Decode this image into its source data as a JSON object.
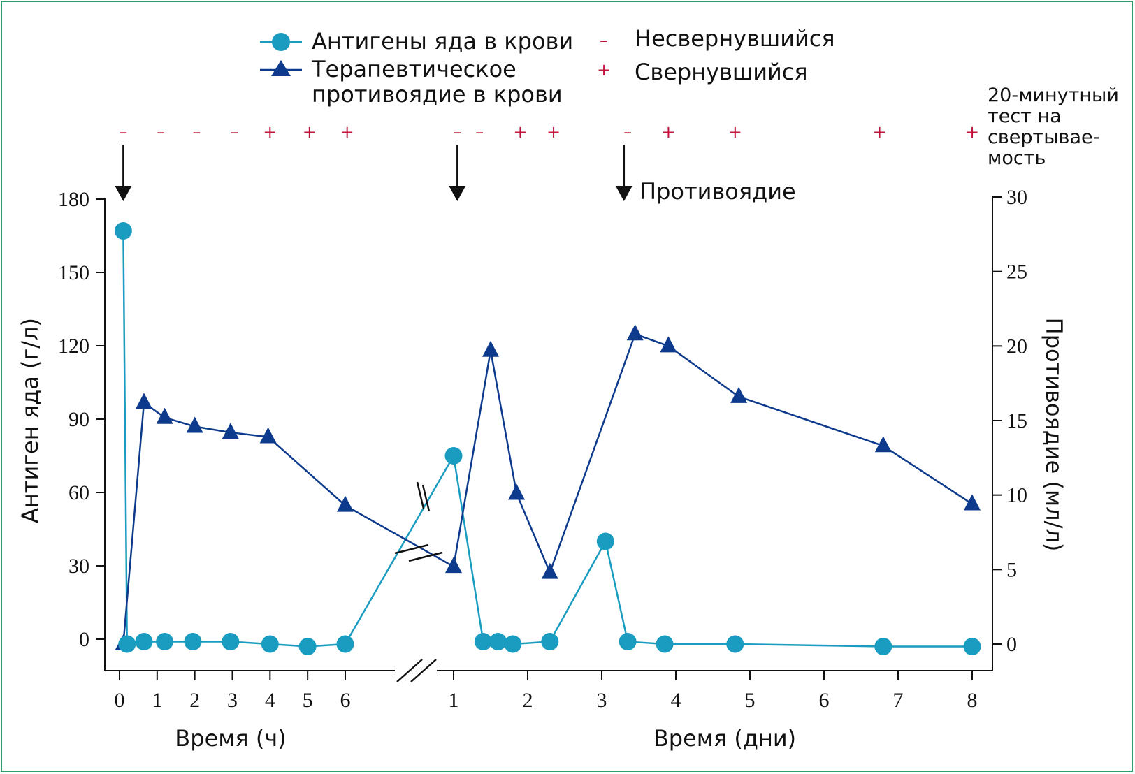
{
  "colors": {
    "antigen": "#1a9cc0",
    "antidote": "#0d3a8c",
    "clot_mark": "#c0143c",
    "frame": "#2e9e6e"
  },
  "chart_data": {
    "type": "line",
    "legend": {
      "antigen": "Антигены яда в крови",
      "antidote_line1": "Терапевтическое",
      "antidote_line2": "противоядие в крови",
      "minus_label": "Несвернувшийся",
      "plus_label": "Свернувшийся",
      "minus_symbol": "–",
      "plus_symbol": "+"
    },
    "clot_test_label": [
      "20-минутный",
      "тест на",
      "свертывае-",
      "мость"
    ],
    "antidote_annotation": "Противоядие",
    "ylabel_left": "Антиген яда (г/л)",
    "ylabel_right": "Противоядие (мл/л)",
    "ylim_left": [
      0,
      180
    ],
    "ylim_right": [
      0,
      30
    ],
    "yticks_left": [
      "180",
      "150",
      "120",
      "90",
      "60",
      "30",
      "0"
    ],
    "yticks_right": [
      "30",
      "25",
      "20",
      "15",
      "10",
      "5",
      "0"
    ],
    "xlabel_hours": "Время (ч)",
    "xlabel_days": "Время (дни)",
    "xticks_hours": [
      "0",
      "1",
      "2",
      "3",
      "4",
      "5",
      "6"
    ],
    "xticks_days": [
      "1",
      "2",
      "3",
      "4",
      "5",
      "6",
      "7",
      "8"
    ],
    "series": [
      {
        "name": "Антигены яда в крови",
        "axis": "left",
        "points": [
          {
            "seg": "h",
            "x": 0.1,
            "y": 167
          },
          {
            "seg": "h",
            "x": 0.2,
            "y": -2
          },
          {
            "seg": "h",
            "x": 0.65,
            "y": -1
          },
          {
            "seg": "h",
            "x": 1.2,
            "y": -1
          },
          {
            "seg": "h",
            "x": 1.95,
            "y": -1
          },
          {
            "seg": "h",
            "x": 2.95,
            "y": -1
          },
          {
            "seg": "h",
            "x": 4,
            "y": -2
          },
          {
            "seg": "h",
            "x": 5,
            "y": -3
          },
          {
            "seg": "h",
            "x": 6,
            "y": -2
          },
          {
            "seg": "d",
            "x": 1,
            "y": 75
          },
          {
            "seg": "d",
            "x": 1.4,
            "y": -1
          },
          {
            "seg": "d",
            "x": 1.6,
            "y": -1
          },
          {
            "seg": "d",
            "x": 1.8,
            "y": -2
          },
          {
            "seg": "d",
            "x": 2.3,
            "y": -1
          },
          {
            "seg": "d",
            "x": 3.05,
            "y": 40
          },
          {
            "seg": "d",
            "x": 3.35,
            "y": -1
          },
          {
            "seg": "d",
            "x": 3.85,
            "y": -2
          },
          {
            "seg": "d",
            "x": 4.8,
            "y": -2
          },
          {
            "seg": "d",
            "x": 6.8,
            "y": -3
          },
          {
            "seg": "d",
            "x": 8,
            "y": -3
          }
        ]
      },
      {
        "name": "Терапевтическое противоядие в крови",
        "axis": "right",
        "points": [
          {
            "seg": "h",
            "x": 0.1,
            "y": 0
          },
          {
            "seg": "h",
            "x": 0.65,
            "y": 16.2
          },
          {
            "seg": "h",
            "x": 1.2,
            "y": 15.2
          },
          {
            "seg": "h",
            "x": 2,
            "y": 14.6
          },
          {
            "seg": "h",
            "x": 2.95,
            "y": 14.2
          },
          {
            "seg": "h",
            "x": 3.95,
            "y": 13.9
          },
          {
            "seg": "h",
            "x": 6,
            "y": 9.3
          },
          {
            "seg": "d",
            "x": 1,
            "y": 5.2
          },
          {
            "seg": "d",
            "x": 1.5,
            "y": 19.7
          },
          {
            "seg": "d",
            "x": 1.85,
            "y": 10.1
          },
          {
            "seg": "d",
            "x": 2.3,
            "y": 4.8
          },
          {
            "seg": "d",
            "x": 3.45,
            "y": 20.8
          },
          {
            "seg": "d",
            "x": 3.9,
            "y": 20
          },
          {
            "seg": "d",
            "x": 4.85,
            "y": 16.6
          },
          {
            "seg": "d",
            "x": 6.8,
            "y": 13.3
          },
          {
            "seg": "d",
            "x": 8,
            "y": 9.4
          }
        ]
      }
    ],
    "clot_tests": [
      {
        "seg": "h",
        "x": 0.1,
        "r": "–"
      },
      {
        "seg": "h",
        "x": 1.1,
        "r": "–"
      },
      {
        "seg": "h",
        "x": 2.05,
        "r": "–"
      },
      {
        "seg": "h",
        "x": 3.05,
        "r": "–"
      },
      {
        "seg": "h",
        "x": 4,
        "r": "+"
      },
      {
        "seg": "h",
        "x": 5.05,
        "r": "+"
      },
      {
        "seg": "h",
        "x": 6.05,
        "r": "+"
      },
      {
        "seg": "d",
        "x": 1.05,
        "r": "–"
      },
      {
        "seg": "d",
        "x": 1.35,
        "r": "–"
      },
      {
        "seg": "d",
        "x": 1.9,
        "r": "+"
      },
      {
        "seg": "d",
        "x": 2.35,
        "r": "+"
      },
      {
        "seg": "d",
        "x": 3.35,
        "r": "–"
      },
      {
        "seg": "d",
        "x": 3.9,
        "r": "+"
      },
      {
        "seg": "d",
        "x": 4.8,
        "r": "+"
      },
      {
        "seg": "d",
        "x": 6.75,
        "r": "+"
      },
      {
        "seg": "d",
        "x": 8,
        "r": "+"
      }
    ],
    "antidote_doses": [
      {
        "seg": "h",
        "x": 0.1
      },
      {
        "seg": "d",
        "x": 1.05
      },
      {
        "seg": "d",
        "x": 3.3
      }
    ]
  }
}
